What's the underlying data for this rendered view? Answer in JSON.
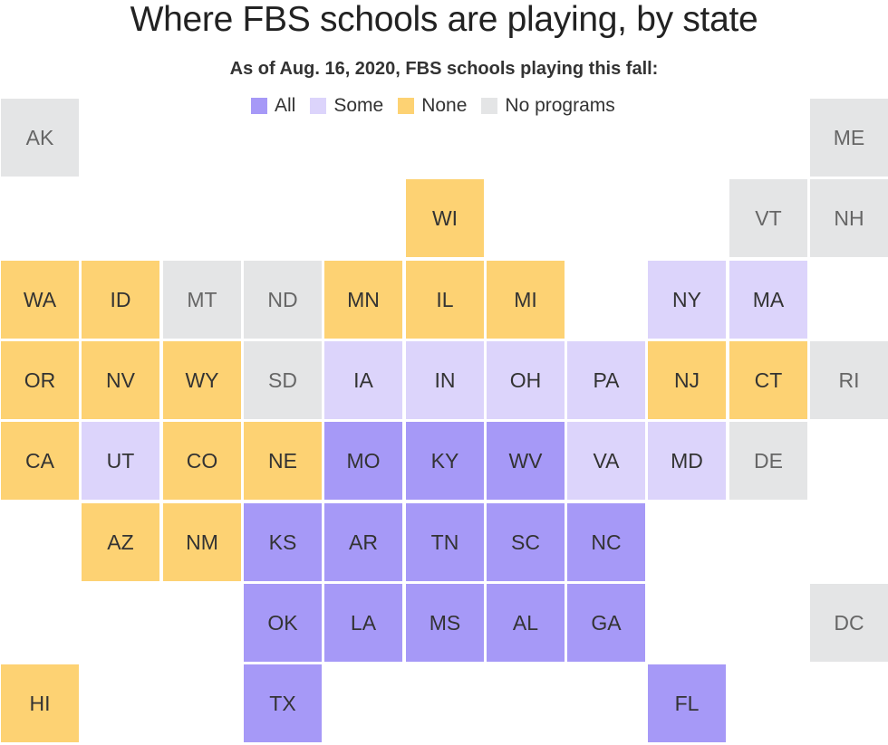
{
  "header": {
    "title": "Where FBS schools are playing, by state",
    "subtitle": "As of Aug. 16, 2020, FBS schools playing this fall:"
  },
  "colors": {
    "all": "#a699f7",
    "some": "#dcd4fb",
    "none": "#fdd273",
    "no_programs": "#e4e5e6"
  },
  "legend": [
    {
      "key": "all",
      "label": "All"
    },
    {
      "key": "some",
      "label": "Some"
    },
    {
      "key": "none",
      "label": "None"
    },
    {
      "key": "no_programs",
      "label": "No programs"
    }
  ],
  "states": [
    {
      "abbr": "AK",
      "row": 0,
      "col": 0,
      "status": "no_programs"
    },
    {
      "abbr": "ME",
      "row": 0,
      "col": 10,
      "status": "no_programs"
    },
    {
      "abbr": "WI",
      "row": 1,
      "col": 5,
      "status": "none"
    },
    {
      "abbr": "VT",
      "row": 1,
      "col": 9,
      "status": "no_programs"
    },
    {
      "abbr": "NH",
      "row": 1,
      "col": 10,
      "status": "no_programs"
    },
    {
      "abbr": "WA",
      "row": 2,
      "col": 0,
      "status": "none"
    },
    {
      "abbr": "ID",
      "row": 2,
      "col": 1,
      "status": "none"
    },
    {
      "abbr": "MT",
      "row": 2,
      "col": 2,
      "status": "no_programs"
    },
    {
      "abbr": "ND",
      "row": 2,
      "col": 3,
      "status": "no_programs"
    },
    {
      "abbr": "MN",
      "row": 2,
      "col": 4,
      "status": "none"
    },
    {
      "abbr": "IL",
      "row": 2,
      "col": 5,
      "status": "none"
    },
    {
      "abbr": "MI",
      "row": 2,
      "col": 6,
      "status": "none"
    },
    {
      "abbr": "NY",
      "row": 2,
      "col": 8,
      "status": "some"
    },
    {
      "abbr": "MA",
      "row": 2,
      "col": 9,
      "status": "some"
    },
    {
      "abbr": "OR",
      "row": 3,
      "col": 0,
      "status": "none"
    },
    {
      "abbr": "NV",
      "row": 3,
      "col": 1,
      "status": "none"
    },
    {
      "abbr": "WY",
      "row": 3,
      "col": 2,
      "status": "none"
    },
    {
      "abbr": "SD",
      "row": 3,
      "col": 3,
      "status": "no_programs"
    },
    {
      "abbr": "IA",
      "row": 3,
      "col": 4,
      "status": "some"
    },
    {
      "abbr": "IN",
      "row": 3,
      "col": 5,
      "status": "some"
    },
    {
      "abbr": "OH",
      "row": 3,
      "col": 6,
      "status": "some"
    },
    {
      "abbr": "PA",
      "row": 3,
      "col": 7,
      "status": "some"
    },
    {
      "abbr": "NJ",
      "row": 3,
      "col": 8,
      "status": "none"
    },
    {
      "abbr": "CT",
      "row": 3,
      "col": 9,
      "status": "none"
    },
    {
      "abbr": "RI",
      "row": 3,
      "col": 10,
      "status": "no_programs"
    },
    {
      "abbr": "CA",
      "row": 4,
      "col": 0,
      "status": "none"
    },
    {
      "abbr": "UT",
      "row": 4,
      "col": 1,
      "status": "some"
    },
    {
      "abbr": "CO",
      "row": 4,
      "col": 2,
      "status": "none"
    },
    {
      "abbr": "NE",
      "row": 4,
      "col": 3,
      "status": "none"
    },
    {
      "abbr": "MO",
      "row": 4,
      "col": 4,
      "status": "all"
    },
    {
      "abbr": "KY",
      "row": 4,
      "col": 5,
      "status": "all"
    },
    {
      "abbr": "WV",
      "row": 4,
      "col": 6,
      "status": "all"
    },
    {
      "abbr": "VA",
      "row": 4,
      "col": 7,
      "status": "some"
    },
    {
      "abbr": "MD",
      "row": 4,
      "col": 8,
      "status": "some"
    },
    {
      "abbr": "DE",
      "row": 4,
      "col": 9,
      "status": "no_programs"
    },
    {
      "abbr": "AZ",
      "row": 5,
      "col": 1,
      "status": "none"
    },
    {
      "abbr": "NM",
      "row": 5,
      "col": 2,
      "status": "none"
    },
    {
      "abbr": "KS",
      "row": 5,
      "col": 3,
      "status": "all"
    },
    {
      "abbr": "AR",
      "row": 5,
      "col": 4,
      "status": "all"
    },
    {
      "abbr": "TN",
      "row": 5,
      "col": 5,
      "status": "all"
    },
    {
      "abbr": "SC",
      "row": 5,
      "col": 6,
      "status": "all"
    },
    {
      "abbr": "NC",
      "row": 5,
      "col": 7,
      "status": "all"
    },
    {
      "abbr": "OK",
      "row": 6,
      "col": 3,
      "status": "all"
    },
    {
      "abbr": "LA",
      "row": 6,
      "col": 4,
      "status": "all"
    },
    {
      "abbr": "MS",
      "row": 6,
      "col": 5,
      "status": "all"
    },
    {
      "abbr": "AL",
      "row": 6,
      "col": 6,
      "status": "all"
    },
    {
      "abbr": "GA",
      "row": 6,
      "col": 7,
      "status": "all"
    },
    {
      "abbr": "DC",
      "row": 6,
      "col": 10,
      "status": "no_programs"
    },
    {
      "abbr": "HI",
      "row": 7,
      "col": 0,
      "status": "none"
    },
    {
      "abbr": "TX",
      "row": 7,
      "col": 3,
      "status": "all"
    },
    {
      "abbr": "FL",
      "row": 7,
      "col": 8,
      "status": "all"
    }
  ]
}
